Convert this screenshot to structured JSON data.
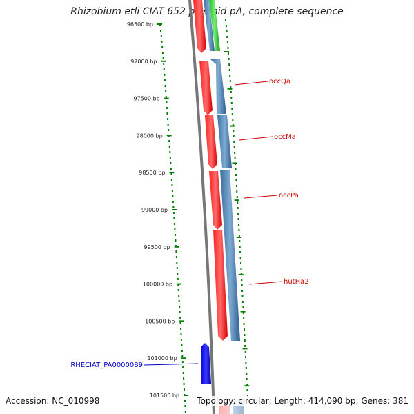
{
  "title": "Rhizobium etli CIAT 652 plasmid pA, complete sequence",
  "footer": {
    "accession": "Accession: NC_010998",
    "topology": "Topology: circular; Length: 414,090 bp; Genes: 381"
  },
  "colors": {
    "tick": "#008000",
    "backbone": "#777777",
    "forward_gene": "#ff0000",
    "reverse_gene": "#4a7fb0",
    "other_gene": "#33cc33",
    "selected_gene": "#0000ff",
    "label_red": "#cc0000",
    "label_blue": "#0000cc"
  },
  "ticks": [
    "96500 bp",
    "97000 bp",
    "97500 bp",
    "98000 bp",
    "98500 bp",
    "99000 bp",
    "99500 bp",
    "100000 bp",
    "100500 bp",
    "101000 bp",
    "101500 bp"
  ],
  "gene_labels": [
    {
      "text": "occQa",
      "color": "#cc0000"
    },
    {
      "text": "occMa",
      "color": "#cc0000"
    },
    {
      "text": "occPa",
      "color": "#cc0000"
    },
    {
      "text": "hutHa2",
      "color": "#cc0000"
    },
    {
      "text": "RHECIAT_PA0000089",
      "color": "#0000cc"
    }
  ]
}
